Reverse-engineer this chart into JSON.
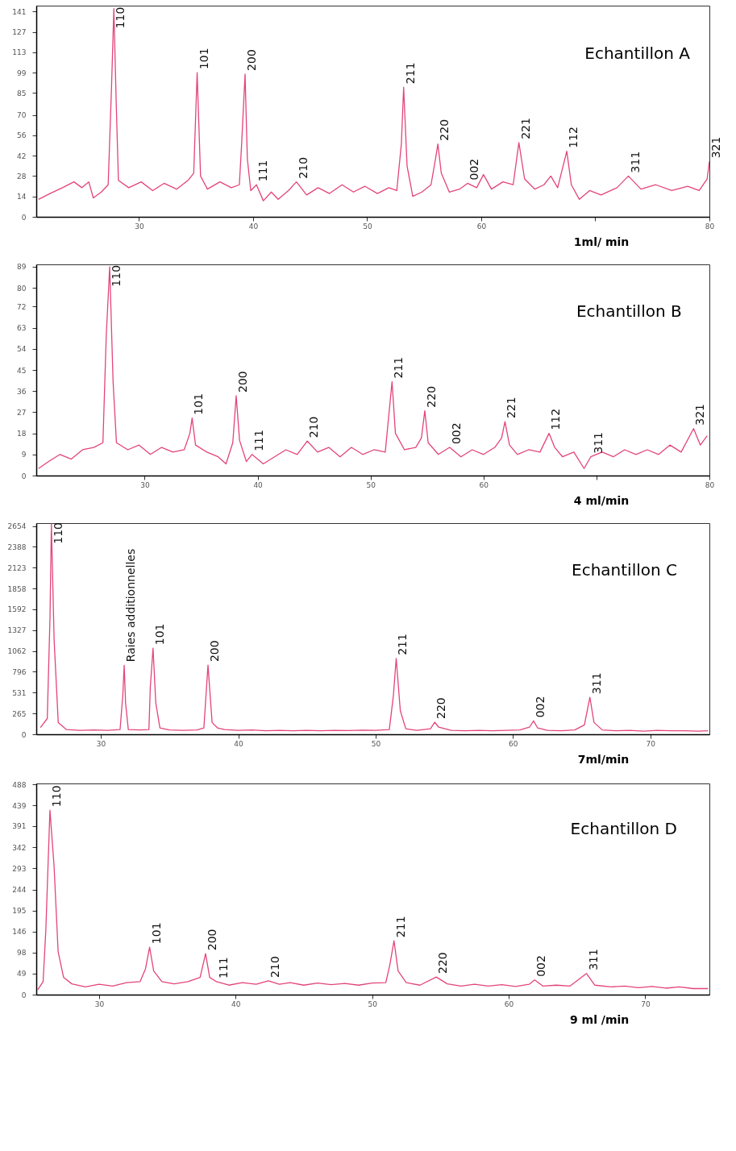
{
  "chart_data": [
    {
      "type": "line",
      "title": "Echantillon A",
      "xlabel": "1ml/ min",
      "xlim": [
        21,
        80
      ],
      "ylim": [
        0,
        145
      ],
      "xticks": [
        30,
        40,
        50,
        60,
        {
          "value": 70,
          "label": null
        },
        80
      ],
      "yticks": [
        0,
        14,
        28,
        42,
        56,
        70,
        85,
        99,
        113,
        127,
        141
      ],
      "x": [
        21.2,
        22.2,
        23.3,
        24.3,
        25.0,
        25.6,
        26.0,
        26.7,
        27.3,
        27.6,
        27.8,
        28.0,
        28.2,
        29.1,
        30.2,
        31.2,
        32.2,
        33.3,
        34.3,
        34.8,
        35.1,
        35.4,
        36.0,
        37.1,
        38.1,
        38.8,
        39.0,
        39.3,
        39.5,
        39.8,
        40.3,
        40.9,
        41.6,
        42.2,
        43.1,
        43.8,
        44.7,
        45.7,
        46.7,
        47.8,
        48.8,
        49.8,
        50.9,
        51.9,
        52.6,
        53.0,
        53.2,
        53.5,
        54.0,
        54.8,
        55.6,
        56.0,
        56.2,
        56.5,
        57.2,
        58.1,
        58.8,
        59.6,
        60.2,
        60.9,
        61.9,
        62.8,
        63.3,
        63.8,
        64.7,
        65.5,
        66.1,
        66.7,
        67.5,
        67.9,
        68.6,
        69.5,
        70.5,
        71.9,
        72.9,
        74.0,
        75.3,
        76.7,
        78.1,
        79.1,
        79.8,
        80.0
      ],
      "series": [
        {
          "color": "#e3457a",
          "values": [
            12,
            16,
            20,
            24,
            20,
            24,
            13,
            17,
            22,
            90,
            143,
            80,
            25,
            20,
            24,
            18,
            23,
            19,
            25,
            30,
            99,
            28,
            19,
            24,
            20,
            22,
            50,
            98,
            40,
            18,
            22,
            11,
            17,
            12,
            18,
            24,
            15,
            20,
            16,
            22,
            17,
            21,
            16,
            20,
            18,
            50,
            89,
            35,
            14,
            17,
            22,
            40,
            50,
            30,
            17,
            19,
            23,
            20,
            29,
            19,
            24,
            22,
            51,
            26,
            19,
            22,
            28,
            20,
            45,
            22,
            12,
            18,
            15,
            20,
            28,
            19,
            22,
            18,
            21,
            18,
            26,
            38
          ]
        }
      ],
      "annotations": [
        {
          "text": "110",
          "x": 27.8,
          "y": 143
        },
        {
          "text": "101",
          "x": 35.1,
          "y": 99
        },
        {
          "text": "200",
          "x": 39.3,
          "y": 98
        },
        {
          "text": "111",
          "x": 40.3,
          "y": 22
        },
        {
          "text": "210",
          "x": 43.8,
          "y": 24
        },
        {
          "text": "211",
          "x": 53.2,
          "y": 89
        },
        {
          "text": "220",
          "x": 56.2,
          "y": 50
        },
        {
          "text": "002",
          "x": 58.8,
          "y": 23
        },
        {
          "text": "221",
          "x": 63.3,
          "y": 51
        },
        {
          "text": "112",
          "x": 67.5,
          "y": 45
        },
        {
          "text": "311",
          "x": 72.9,
          "y": 28
        },
        {
          "text": "321",
          "x": 80.0,
          "y": 38
        }
      ]
    },
    {
      "type": "line",
      "title": "Echantillon B",
      "xlabel": "4 ml/min",
      "xlim": [
        20.4,
        80
      ],
      "ylim": [
        0,
        90
      ],
      "xticks": [
        30,
        40,
        50,
        60,
        {
          "value": 70,
          "label": null
        },
        80
      ],
      "yticks": [
        0,
        9,
        18,
        27,
        36,
        45,
        54,
        63,
        72,
        80,
        89
      ],
      "x": [
        20.6,
        21.5,
        22.5,
        23.5,
        24.5,
        25.5,
        26.3,
        26.6,
        26.9,
        27.2,
        27.5,
        28.5,
        29.5,
        30.5,
        31.5,
        32.5,
        33.5,
        34.0,
        34.2,
        34.5,
        35.5,
        36.5,
        37.2,
        37.8,
        38.1,
        38.4,
        39.0,
        39.5,
        40.5,
        41.5,
        42.5,
        43.5,
        44.4,
        45.3,
        46.3,
        47.3,
        48.3,
        49.3,
        50.3,
        51.3,
        51.6,
        51.9,
        52.2,
        53.0,
        54.0,
        54.5,
        54.8,
        55.1,
        56.0,
        57.0,
        58.0,
        59.0,
        60.0,
        61.0,
        61.6,
        61.9,
        62.3,
        63.0,
        64.0,
        65.0,
        65.8,
        66.3,
        67.0,
        68.0,
        68.9,
        69.5,
        70.5,
        71.5,
        72.5,
        73.5,
        74.5,
        75.5,
        76.5,
        77.5,
        78.6,
        79.2,
        79.8
      ],
      "series": [
        {
          "color": "#e3457a",
          "values": [
            3,
            6,
            9,
            7,
            11,
            12,
            14,
            60,
            89,
            40,
            14,
            11,
            13,
            9,
            12,
            10,
            11,
            18,
            24.5,
            13,
            10,
            8,
            5,
            14,
            34,
            15,
            6,
            9,
            5,
            8,
            11,
            9,
            14.7,
            10,
            12,
            8,
            12,
            9,
            11,
            10,
            25,
            40,
            18,
            11,
            12,
            16,
            27.6,
            14,
            9,
            12,
            8,
            11,
            9,
            12,
            16,
            23,
            13,
            9,
            11,
            10,
            18,
            12,
            8,
            10,
            3,
            8,
            10,
            8,
            11,
            9,
            11,
            9,
            13,
            10,
            20,
            13,
            17
          ]
        }
      ],
      "annotations": [
        {
          "text": "110",
          "x": 26.9,
          "y": 89
        },
        {
          "text": "101",
          "x": 34.2,
          "y": 24.5
        },
        {
          "text": "200",
          "x": 38.1,
          "y": 34
        },
        {
          "text": "111",
          "x": 39.5,
          "y": 9
        },
        {
          "text": "210",
          "x": 44.4,
          "y": 14.7
        },
        {
          "text": "211",
          "x": 51.9,
          "y": 40
        },
        {
          "text": "220",
          "x": 54.8,
          "y": 27.6
        },
        {
          "text": "002",
          "x": 57.0,
          "y": 12
        },
        {
          "text": "221",
          "x": 61.9,
          "y": 23
        },
        {
          "text": "112",
          "x": 65.8,
          "y": 18
        },
        {
          "text": "311",
          "x": 69.6,
          "y": 8
        },
        {
          "text": "321",
          "x": 78.6,
          "y": 20
        }
      ]
    },
    {
      "type": "line",
      "title": "Echantillon C",
      "xlabel": "7ml/min",
      "xlim": [
        25.3,
        74.3
      ],
      "ylim": [
        0,
        2690
      ],
      "xticks": [
        30,
        40,
        50,
        60,
        70
      ],
      "yticks": [
        0,
        265,
        531,
        796,
        1062,
        1327,
        1592,
        1858,
        2123,
        2388,
        2654
      ],
      "x": [
        25.6,
        26.1,
        26.3,
        26.4,
        26.6,
        26.9,
        27.5,
        28.5,
        29.5,
        30.5,
        31.4,
        31.6,
        31.7,
        31.8,
        32.0,
        32.8,
        33.5,
        33.6,
        33.8,
        34.0,
        34.3,
        35.0,
        36.0,
        37.0,
        37.5,
        37.8,
        38.1,
        38.5,
        39.0,
        40.0,
        41.0,
        42.0,
        43.0,
        44.0,
        45.0,
        46.0,
        47.0,
        48.0,
        49.0,
        50.0,
        51.0,
        51.3,
        51.5,
        51.8,
        52.2,
        53.0,
        54.0,
        54.3,
        54.6,
        55.5,
        56.5,
        57.5,
        58.5,
        59.5,
        60.5,
        61.2,
        61.5,
        61.8,
        62.5,
        63.5,
        64.5,
        65.2,
        65.6,
        65.9,
        66.5,
        67.5,
        68.5,
        69.5,
        70.5,
        71.5,
        72.5,
        73.5,
        74.2
      ],
      "series": [
        {
          "color": "#e3457a",
          "values": [
            86,
            200,
            1500,
            2680,
            1200,
            150,
            60,
            50,
            55,
            50,
            60,
            500,
            880,
            400,
            60,
            55,
            60,
            600,
            1096,
            400,
            80,
            55,
            50,
            55,
            80,
            882,
            150,
            80,
            60,
            50,
            55,
            45,
            50,
            45,
            50,
            45,
            50,
            48,
            52,
            50,
            60,
            500,
            967,
            300,
            70,
            50,
            70,
            154,
            90,
            50,
            45,
            50,
            45,
            50,
            55,
            90,
            171,
            80,
            50,
            45,
            55,
            120,
            471,
            150,
            55,
            45,
            50,
            40,
            50,
            45,
            45,
            40,
            45
          ]
        }
      ],
      "annotations": [
        {
          "text": "110",
          "x": 26.4,
          "y": 2680
        },
        {
          "text": "Raies additionnelles",
          "x": 31.7,
          "y": 880
        },
        {
          "text": "101",
          "x": 33.8,
          "y": 1096
        },
        {
          "text": "200",
          "x": 37.8,
          "y": 882
        },
        {
          "text": "211",
          "x": 51.5,
          "y": 967
        },
        {
          "text": "220",
          "x": 54.3,
          "y": 154
        },
        {
          "text": "002",
          "x": 61.5,
          "y": 171
        },
        {
          "text": "311",
          "x": 65.6,
          "y": 471
        }
      ]
    },
    {
      "type": "line",
      "title": "Echantillon D",
      "xlabel": "9 ml /min",
      "xlim": [
        25.4,
        74.7
      ],
      "ylim": [
        0,
        490
      ],
      "xticks": [
        30,
        40,
        50,
        60,
        70
      ],
      "yticks": [
        0,
        49,
        98,
        146,
        195,
        244,
        293,
        342,
        391,
        439,
        488
      ],
      "x": [
        25.5,
        25.9,
        26.1,
        26.4,
        26.7,
        27.0,
        27.4,
        28.0,
        29.0,
        30.0,
        31.0,
        32.0,
        33.0,
        33.4,
        33.7,
        34.0,
        34.6,
        35.5,
        36.5,
        37.4,
        37.8,
        38.1,
        38.6,
        39.5,
        40.5,
        41.5,
        42.4,
        43.2,
        44.0,
        45.0,
        46.0,
        47.0,
        48.0,
        49.0,
        50.0,
        51.0,
        51.3,
        51.6,
        51.9,
        52.5,
        53.5,
        54.7,
        55.5,
        56.5,
        57.5,
        58.5,
        59.5,
        60.5,
        61.5,
        61.9,
        62.5,
        63.5,
        64.5,
        65.7,
        66.3,
        67.5,
        68.5,
        69.5,
        70.5,
        71.5,
        72.5,
        73.5,
        74.6
      ],
      "series": [
        {
          "color": "#e3457a",
          "values": [
            11,
            30,
            150,
            428,
            300,
            100,
            40,
            25,
            18,
            24,
            20,
            28,
            30,
            60,
            110,
            55,
            30,
            25,
            30,
            40,
            95,
            40,
            30,
            22,
            28,
            24,
            32,
            24,
            28,
            22,
            27,
            23,
            26,
            22,
            27,
            28,
            70,
            125,
            55,
            28,
            22,
            41,
            25,
            20,
            24,
            20,
            23,
            19,
            24,
            34,
            20,
            22,
            20,
            49,
            22,
            18,
            20,
            16,
            19,
            15,
            18,
            14,
            14
          ]
        }
      ],
      "annotations": [
        {
          "text": "110",
          "x": 26.4,
          "y": 428
        },
        {
          "text": "101",
          "x": 33.7,
          "y": 110
        },
        {
          "text": "200",
          "x": 37.8,
          "y": 95
        },
        {
          "text": "111",
          "x": 38.6,
          "y": 30
        },
        {
          "text": "210",
          "x": 42.4,
          "y": 32
        },
        {
          "text": "211",
          "x": 51.6,
          "y": 125
        },
        {
          "text": "220",
          "x": 54.7,
          "y": 41
        },
        {
          "text": "002",
          "x": 61.9,
          "y": 34
        },
        {
          "text": "311",
          "x": 65.7,
          "y": 49
        }
      ]
    }
  ]
}
